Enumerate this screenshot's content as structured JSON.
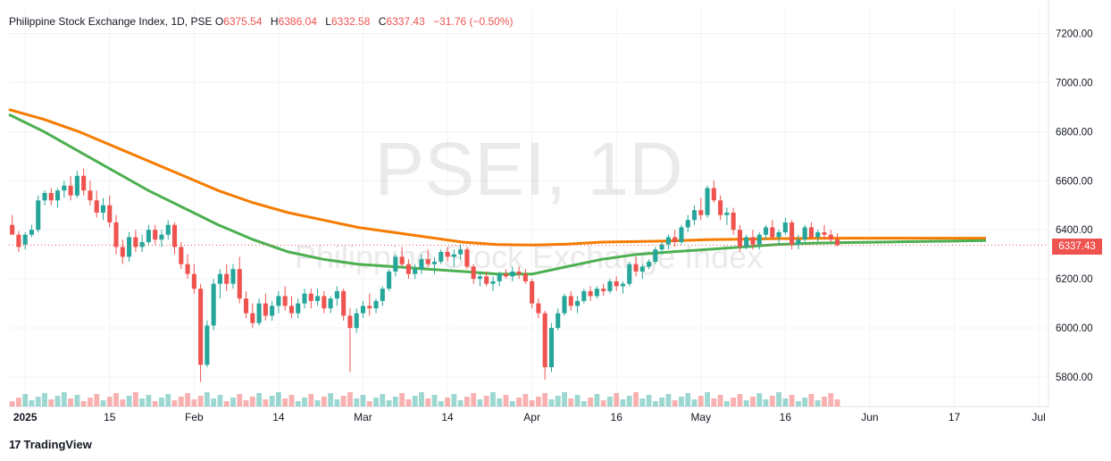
{
  "header": {
    "symbol": "Philippine Stock Exchange Index, 1D, PSE",
    "o_label": "O",
    "o_value": "6375.54",
    "h_label": "H",
    "h_value": "6386.04",
    "l_label": "L",
    "l_value": "6332.58",
    "c_label": "C",
    "c_value": "6337.43",
    "change": "−31.76 (−0.50%)"
  },
  "watermark": {
    "ticker": "PSEI, 1D",
    "name": "Philippine Stock Exchange Index"
  },
  "footer": {
    "brand": "TradingView",
    "logo": "17"
  },
  "last_price_tag": "6337.43",
  "colors": {
    "up": "#26a69a",
    "down": "#ef5350",
    "ema_orange": "#f57c00",
    "ema_green": "#4caf50",
    "blue": "#1e88e5",
    "navy": "#1a3d8f",
    "darkred": "#a31919",
    "cloud_red": "#f9c5cf",
    "cloud_green": "#cfe8d2"
  },
  "chart_data": {
    "type": "candlestick",
    "ylim": [
      5680,
      7300
    ],
    "y_ticks": [
      5800,
      6000,
      6200,
      6400,
      6600,
      6800,
      7000,
      7200
    ],
    "y_tick_labels": [
      "5800.00",
      "6000.00",
      "6200.00",
      "6400.00",
      "6600.00",
      "6800.00",
      "7000.00",
      "7200.00"
    ],
    "x_tick_labels": [
      "2025",
      "15",
      "Feb",
      "14",
      "Mar",
      "14",
      "Apr",
      "16",
      "May",
      "16",
      "Jun",
      "17",
      "Jul"
    ],
    "x_tick_index": [
      2,
      15,
      28,
      41,
      54,
      67,
      80,
      93,
      106,
      119,
      132,
      145,
      158
    ],
    "n_slots": 160,
    "last_close": 6337.43,
    "candles": [
      [
        6420,
        6460,
        6390,
        6380
      ],
      [
        6380,
        6395,
        6310,
        6330
      ],
      [
        6340,
        6390,
        6320,
        6380
      ],
      [
        6380,
        6420,
        6370,
        6400
      ],
      [
        6400,
        6540,
        6390,
        6520
      ],
      [
        6520,
        6560,
        6500,
        6550
      ],
      [
        6550,
        6570,
        6500,
        6520
      ],
      [
        6520,
        6570,
        6490,
        6560
      ],
      [
        6560,
        6600,
        6530,
        6580
      ],
      [
        6580,
        6620,
        6520,
        6540
      ],
      [
        6540,
        6640,
        6530,
        6620
      ],
      [
        6620,
        6650,
        6540,
        6560
      ],
      [
        6560,
        6600,
        6500,
        6520
      ],
      [
        6520,
        6560,
        6450,
        6470
      ],
      [
        6470,
        6530,
        6440,
        6500
      ],
      [
        6500,
        6540,
        6410,
        6430
      ],
      [
        6430,
        6460,
        6300,
        6330
      ],
      [
        6330,
        6360,
        6260,
        6290
      ],
      [
        6290,
        6390,
        6270,
        6370
      ],
      [
        6370,
        6400,
        6310,
        6330
      ],
      [
        6330,
        6380,
        6310,
        6350
      ],
      [
        6350,
        6420,
        6340,
        6400
      ],
      [
        6400,
        6420,
        6340,
        6360
      ],
      [
        6360,
        6400,
        6330,
        6380
      ],
      [
        6380,
        6440,
        6360,
        6420
      ],
      [
        6420,
        6430,
        6300,
        6330
      ],
      [
        6330,
        6350,
        6240,
        6260
      ],
      [
        6260,
        6300,
        6200,
        6220
      ],
      [
        6220,
        6260,
        6140,
        6160
      ],
      [
        6160,
        6180,
        5780,
        5850
      ],
      [
        5850,
        6030,
        5840,
        6010
      ],
      [
        6010,
        6200,
        5990,
        6180
      ],
      [
        6180,
        6240,
        6120,
        6220
      ],
      [
        6220,
        6260,
        6150,
        6180
      ],
      [
        6180,
        6260,
        6160,
        6240
      ],
      [
        6240,
        6290,
        6100,
        6120
      ],
      [
        6120,
        6150,
        6040,
        6060
      ],
      [
        6060,
        6100,
        6000,
        6020
      ],
      [
        6020,
        6120,
        6010,
        6100
      ],
      [
        6100,
        6140,
        6030,
        6050
      ],
      [
        6050,
        6110,
        6030,
        6090
      ],
      [
        6090,
        6150,
        6060,
        6130
      ],
      [
        6130,
        6170,
        6070,
        6090
      ],
      [
        6090,
        6130,
        6040,
        6060
      ],
      [
        6060,
        6120,
        6040,
        6100
      ],
      [
        6100,
        6160,
        6080,
        6140
      ],
      [
        6140,
        6160,
        6080,
        6110
      ],
      [
        6110,
        6160,
        6090,
        6130
      ],
      [
        6130,
        6150,
        6060,
        6080
      ],
      [
        6080,
        6130,
        6060,
        6120
      ],
      [
        6120,
        6170,
        6090,
        6150
      ],
      [
        6150,
        6160,
        6030,
        6050
      ],
      [
        6050,
        6080,
        5820,
        6000
      ],
      [
        6000,
        6080,
        5980,
        6060
      ],
      [
        6060,
        6110,
        6040,
        6090
      ],
      [
        6090,
        6140,
        6050,
        6080
      ],
      [
        6080,
        6120,
        6060,
        6110
      ],
      [
        6110,
        6170,
        6090,
        6160
      ],
      [
        6160,
        6240,
        6150,
        6230
      ],
      [
        6230,
        6300,
        6210,
        6290
      ],
      [
        6290,
        6330,
        6250,
        6260
      ],
      [
        6260,
        6280,
        6200,
        6220
      ],
      [
        6220,
        6260,
        6200,
        6240
      ],
      [
        6240,
        6300,
        6220,
        6280
      ],
      [
        6280,
        6320,
        6250,
        6260
      ],
      [
        6260,
        6290,
        6220,
        6270
      ],
      [
        6270,
        6320,
        6260,
        6310
      ],
      [
        6310,
        6330,
        6270,
        6290
      ],
      [
        6290,
        6320,
        6250,
        6300
      ],
      [
        6300,
        6340,
        6280,
        6320
      ],
      [
        6320,
        6330,
        6240,
        6250
      ],
      [
        6250,
        6260,
        6180,
        6200
      ],
      [
        6200,
        6230,
        6170,
        6210
      ],
      [
        6210,
        6230,
        6170,
        6180
      ],
      [
        6180,
        6210,
        6150,
        6190
      ],
      [
        6190,
        6230,
        6170,
        6220
      ],
      [
        6220,
        6240,
        6200,
        6210
      ],
      [
        6210,
        6250,
        6190,
        6230
      ],
      [
        6230,
        6250,
        6200,
        6220
      ],
      [
        6220,
        6240,
        6180,
        6190
      ],
      [
        6190,
        6200,
        6080,
        6100
      ],
      [
        6100,
        6120,
        6040,
        6060
      ],
      [
        6060,
        6070,
        5790,
        5840
      ],
      [
        5840,
        6020,
        5820,
        6000
      ],
      [
        6000,
        6080,
        5990,
        6060
      ],
      [
        6060,
        6140,
        6050,
        6130
      ],
      [
        6130,
        6150,
        6070,
        6090
      ],
      [
        6090,
        6130,
        6060,
        6110
      ],
      [
        6110,
        6160,
        6100,
        6150
      ],
      [
        6150,
        6170,
        6110,
        6130
      ],
      [
        6130,
        6170,
        6120,
        6160
      ],
      [
        6160,
        6180,
        6130,
        6150
      ],
      [
        6150,
        6200,
        6140,
        6190
      ],
      [
        6190,
        6210,
        6150,
        6170
      ],
      [
        6170,
        6190,
        6140,
        6180
      ],
      [
        6180,
        6270,
        6170,
        6260
      ],
      [
        6260,
        6290,
        6210,
        6230
      ],
      [
        6230,
        6260,
        6200,
        6250
      ],
      [
        6250,
        6280,
        6240,
        6270
      ],
      [
        6270,
        6330,
        6260,
        6320
      ],
      [
        6320,
        6350,
        6300,
        6340
      ],
      [
        6340,
        6380,
        6320,
        6370
      ],
      [
        6370,
        6400,
        6330,
        6350
      ],
      [
        6350,
        6420,
        6340,
        6410
      ],
      [
        6410,
        6460,
        6390,
        6440
      ],
      [
        6440,
        6500,
        6420,
        6480
      ],
      [
        6480,
        6530,
        6440,
        6460
      ],
      [
        6460,
        6580,
        6450,
        6570
      ],
      [
        6570,
        6600,
        6510,
        6520
      ],
      [
        6520,
        6540,
        6440,
        6460
      ],
      [
        6460,
        6490,
        6420,
        6470
      ],
      [
        6470,
        6490,
        6380,
        6400
      ],
      [
        6400,
        6420,
        6310,
        6330
      ],
      [
        6330,
        6380,
        6320,
        6370
      ],
      [
        6370,
        6400,
        6320,
        6340
      ],
      [
        6340,
        6390,
        6320,
        6380
      ],
      [
        6380,
        6420,
        6360,
        6410
      ],
      [
        6410,
        6440,
        6360,
        6370
      ],
      [
        6370,
        6400,
        6340,
        6390
      ],
      [
        6390,
        6450,
        6380,
        6430
      ],
      [
        6430,
        6440,
        6320,
        6340
      ],
      [
        6340,
        6380,
        6320,
        6360
      ],
      [
        6360,
        6420,
        6350,
        6410
      ],
      [
        6410,
        6430,
        6360,
        6370
      ],
      [
        6370,
        6400,
        6350,
        6390
      ],
      [
        6390,
        6420,
        6360,
        6380
      ],
      [
        6380,
        6400,
        6350,
        6360
      ],
      [
        6360,
        6386,
        6333,
        6337
      ]
    ],
    "candle_slot_offset": 0,
    "series": [
      {
        "name": "",
        "color": "#f57c00",
        "width": 3,
        "points": [
          [
            0,
            6890
          ],
          [
            10,
            6850
          ],
          [
            20,
            6800
          ],
          [
            30,
            6740
          ],
          [
            40,
            6680
          ],
          [
            50,
            6620
          ],
          [
            60,
            6560
          ],
          [
            70,
            6510
          ],
          [
            80,
            6470
          ],
          [
            90,
            6440
          ],
          [
            100,
            6410
          ],
          [
            110,
            6390
          ],
          [
            120,
            6370
          ],
          [
            130,
            6350
          ],
          [
            140,
            6340
          ],
          [
            150,
            6338
          ],
          [
            160,
            6342
          ],
          [
            170,
            6350
          ],
          [
            180,
            6352
          ],
          [
            190,
            6355
          ],
          [
            200,
            6360
          ],
          [
            210,
            6362
          ],
          [
            220,
            6364
          ],
          [
            230,
            6365
          ],
          [
            240,
            6366
          ],
          [
            250,
            6366
          ],
          [
            260,
            6366
          ],
          [
            270,
            6366
          ],
          [
            280,
            6366
          ]
        ]
      },
      {
        "name": "",
        "color": "#4caf50",
        "width": 3,
        "points": [
          [
            0,
            6870
          ],
          [
            10,
            6800
          ],
          [
            20,
            6720
          ],
          [
            30,
            6640
          ],
          [
            40,
            6560
          ],
          [
            50,
            6490
          ],
          [
            60,
            6420
          ],
          [
            70,
            6360
          ],
          [
            80,
            6310
          ],
          [
            90,
            6280
          ],
          [
            100,
            6260
          ],
          [
            110,
            6250
          ],
          [
            120,
            6240
          ],
          [
            130,
            6230
          ],
          [
            140,
            6220
          ],
          [
            150,
            6220
          ],
          [
            160,
            6250
          ],
          [
            170,
            6280
          ],
          [
            180,
            6300
          ],
          [
            190,
            6310
          ],
          [
            200,
            6320
          ],
          [
            210,
            6330
          ],
          [
            220,
            6340
          ],
          [
            230,
            6345
          ],
          [
            240,
            6348
          ],
          [
            250,
            6350
          ],
          [
            260,
            6352
          ],
          [
            270,
            6354
          ],
          [
            280,
            6356
          ]
        ]
      }
    ]
  }
}
